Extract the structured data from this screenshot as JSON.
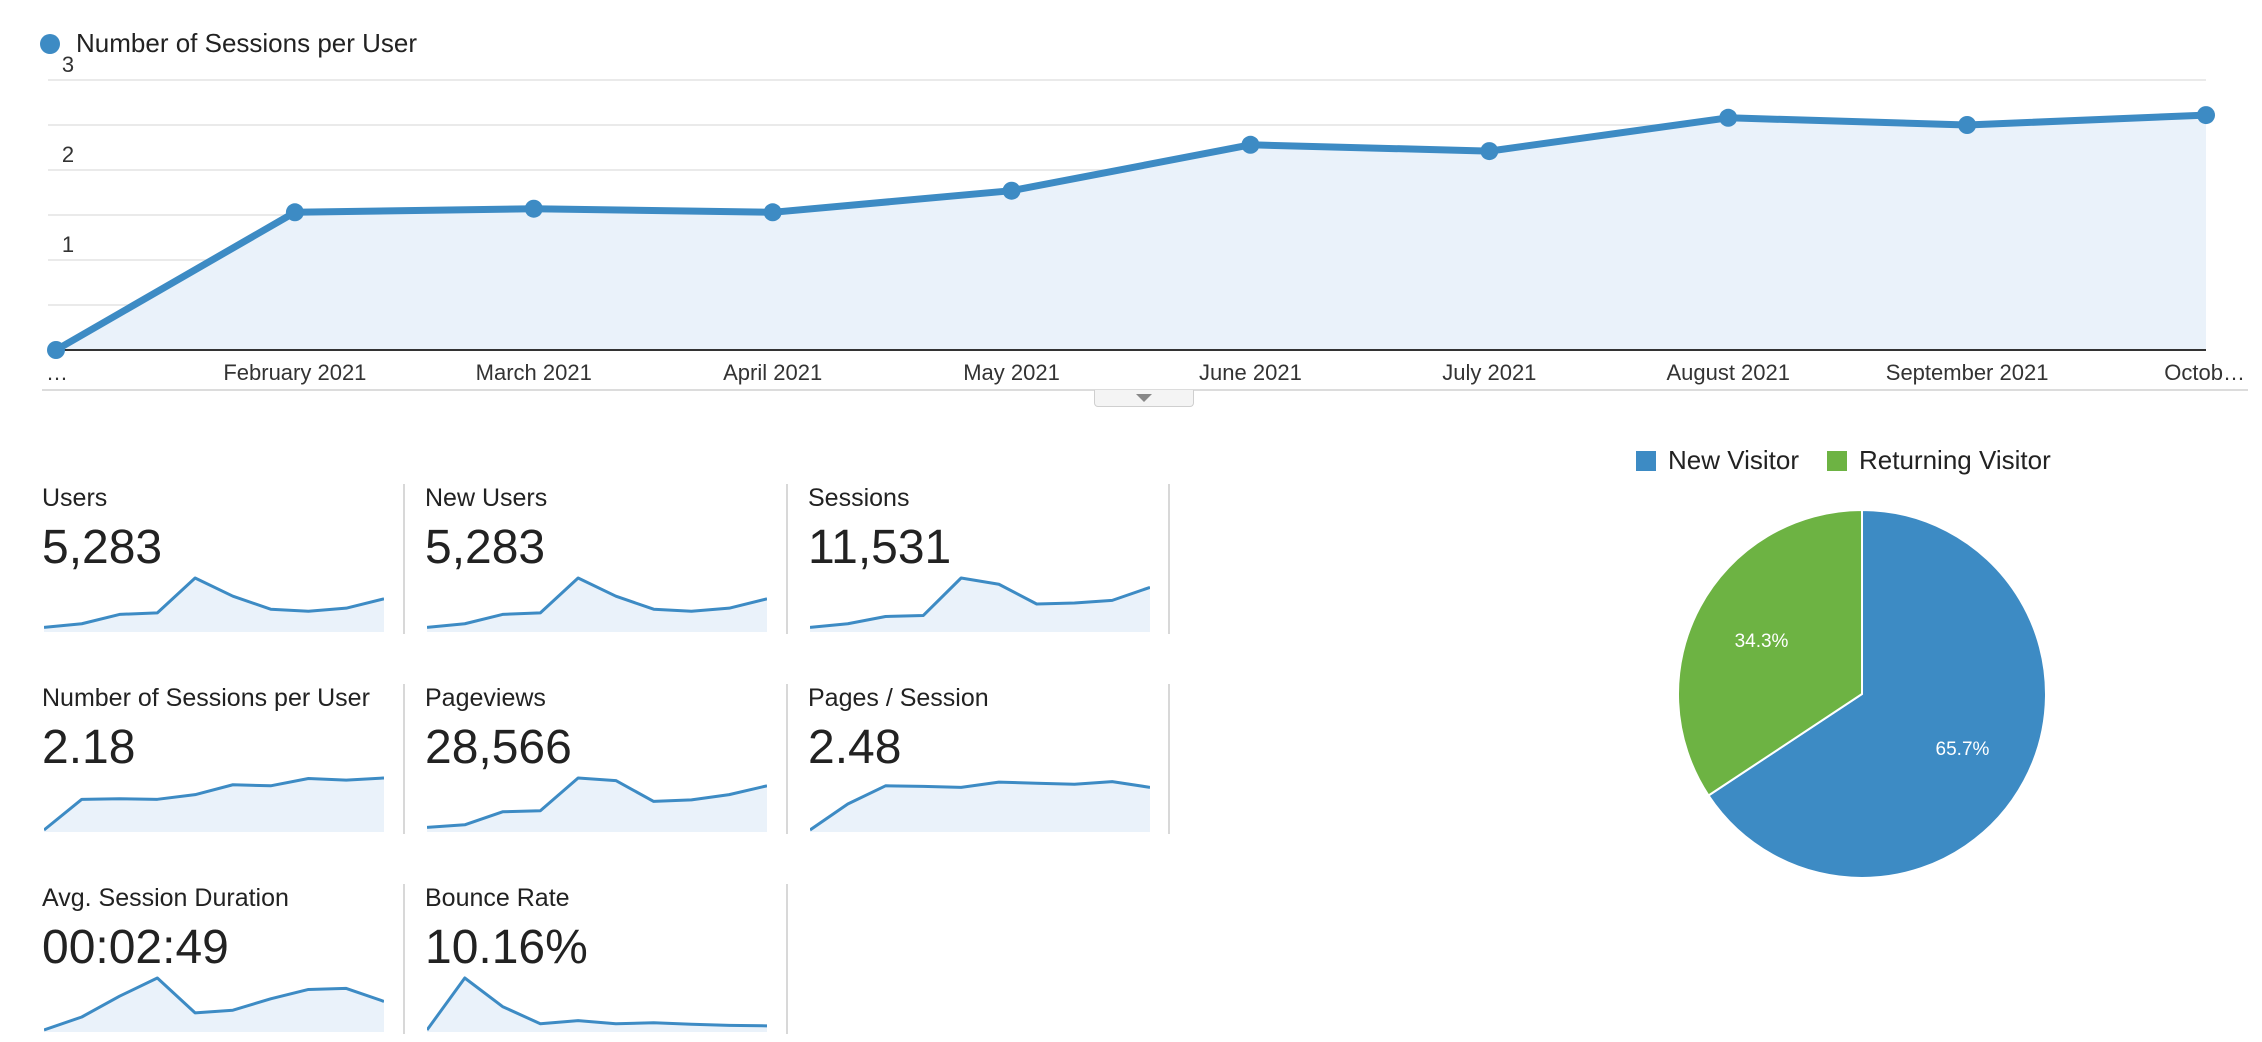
{
  "chart_data": [
    {
      "type": "area",
      "series": [
        {
          "name": "Number of Sessions per User",
          "values": [
            0,
            1.53,
            1.57,
            1.53,
            1.77,
            2.28,
            2.21,
            2.58,
            2.5,
            2.61
          ]
        }
      ],
      "x_tick_labels": [
        "…",
        "February 2021",
        "March 2021",
        "April 2021",
        "May 2021",
        "June 2021",
        "July 2021",
        "August 2021",
        "September 2021",
        "Octob…"
      ],
      "y_tick_labels": [
        "3",
        "2",
        "1"
      ],
      "ylim": [
        0,
        3
      ],
      "grid": true,
      "legend_position": "top-left",
      "colors": {
        "line": "#3d8bc4",
        "fill": "#eaf2fa",
        "grid": "#e3e3e3",
        "axis": "#333333"
      }
    },
    {
      "type": "pie",
      "slices": [
        {
          "name": "New Visitor",
          "value": 65.7,
          "label": "65.7%",
          "color": "#3d8bc4"
        },
        {
          "name": "Returning Visitor",
          "value": 34.3,
          "label": "34.3%",
          "color": "#6db343"
        }
      ],
      "legend_position": "top"
    }
  ],
  "metrics": [
    {
      "label": "Users",
      "value": "5,283",
      "spark": [
        0.05,
        0.12,
        0.3,
        0.33,
        1.0,
        0.65,
        0.4,
        0.36,
        0.42,
        0.6
      ]
    },
    {
      "label": "New Users",
      "value": "5,283",
      "spark": [
        0.05,
        0.12,
        0.3,
        0.33,
        1.0,
        0.65,
        0.4,
        0.36,
        0.42,
        0.6
      ]
    },
    {
      "label": "Sessions",
      "value": "11,531",
      "spark": [
        0.05,
        0.12,
        0.26,
        0.28,
        1.0,
        0.88,
        0.5,
        0.52,
        0.57,
        0.82
      ]
    },
    {
      "label": "Number of Sessions per User",
      "value": "2.18",
      "spark": [
        0.0,
        0.59,
        0.6,
        0.59,
        0.68,
        0.87,
        0.85,
        0.99,
        0.96,
        1.0
      ]
    },
    {
      "label": "Pageviews",
      "value": "28,566",
      "spark": [
        0.05,
        0.1,
        0.35,
        0.37,
        1.0,
        0.95,
        0.55,
        0.58,
        0.68,
        0.85
      ]
    },
    {
      "label": "Pages / Session",
      "value": "2.48",
      "spark": [
        0.0,
        0.5,
        0.85,
        0.84,
        0.82,
        0.92,
        0.9,
        0.88,
        0.93,
        0.82
      ]
    },
    {
      "label": "Avg. Session Duration",
      "value": "00:02:49",
      "spark": [
        0.0,
        0.25,
        0.65,
        1.0,
        0.33,
        0.38,
        0.6,
        0.78,
        0.8,
        0.55
      ]
    },
    {
      "label": "Bounce Rate",
      "value": "10.16%",
      "spark": [
        0.0,
        1.0,
        0.45,
        0.12,
        0.18,
        0.12,
        0.14,
        0.11,
        0.09,
        0.08
      ]
    }
  ]
}
